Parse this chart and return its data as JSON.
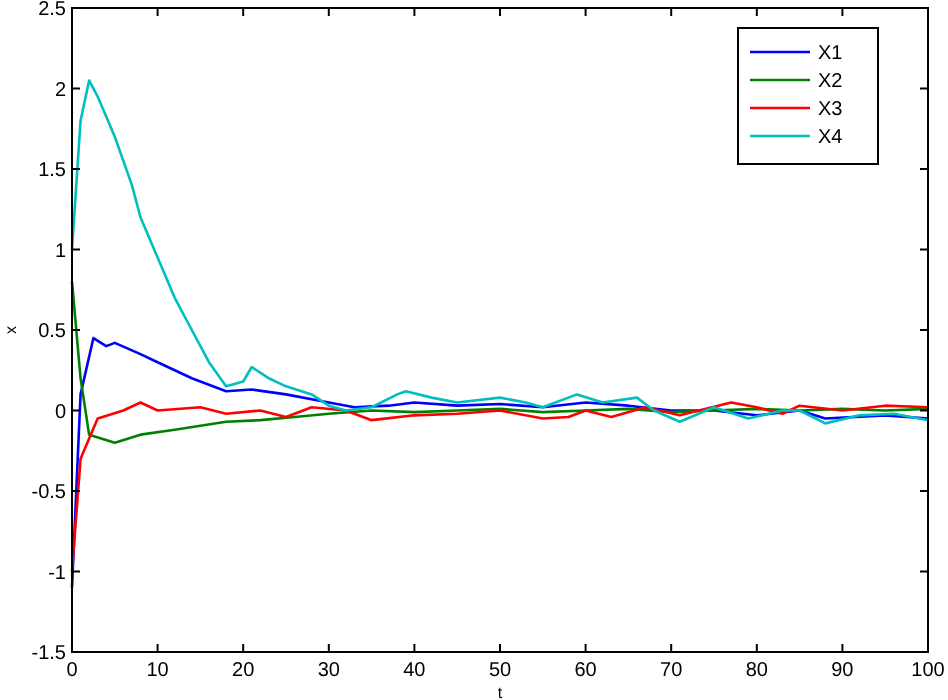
{
  "chart_data": {
    "type": "line",
    "xlabel": "t",
    "ylabel": "x",
    "xlim": [
      0,
      100
    ],
    "ylim": [
      -1.5,
      2.5
    ],
    "xticks": [
      0,
      10,
      20,
      30,
      40,
      50,
      60,
      70,
      80,
      90,
      100
    ],
    "yticks": [
      -1.5,
      -1,
      -0.5,
      0,
      0.5,
      1,
      1.5,
      2,
      2.5
    ],
    "legend": "top right",
    "grid": false,
    "series": [
      {
        "name": "X1",
        "color": "#0000ff",
        "x": [
          0,
          1,
          2.5,
          4,
          5,
          8,
          10,
          14,
          18,
          21,
          25,
          30,
          33,
          37,
          40,
          45,
          50,
          55,
          60,
          65,
          70,
          75,
          80,
          85,
          88,
          95,
          100
        ],
        "values": [
          -1.1,
          0.1,
          0.45,
          0.4,
          0.42,
          0.35,
          0.3,
          0.2,
          0.12,
          0.13,
          0.1,
          0.05,
          0.02,
          0.03,
          0.05,
          0.03,
          0.04,
          0.02,
          0.05,
          0.03,
          0,
          0,
          -0.03,
          0,
          -0.05,
          -0.03,
          -0.05
        ]
      },
      {
        "name": "X2",
        "color": "#008000",
        "x": [
          0,
          1,
          2,
          5,
          8,
          12,
          18,
          22,
          26,
          30,
          35,
          40,
          45,
          50,
          55,
          60,
          65,
          70,
          75,
          80,
          85,
          90,
          95,
          100
        ],
        "values": [
          0.8,
          0.2,
          -0.15,
          -0.2,
          -0.15,
          -0.12,
          -0.07,
          -0.06,
          -0.04,
          -0.02,
          0,
          -0.01,
          0,
          0.01,
          -0.01,
          0,
          0.01,
          -0.01,
          0,
          0.01,
          0,
          0.01,
          0,
          0.01
        ]
      },
      {
        "name": "X3",
        "color": "#ff0000",
        "x": [
          0,
          1,
          3,
          6,
          8,
          10,
          15,
          18,
          22,
          25,
          28,
          32,
          35,
          40,
          45,
          50,
          55,
          58,
          60,
          63,
          67,
          71,
          77,
          80,
          83,
          85,
          90,
          95,
          100
        ],
        "values": [
          -1,
          -0.3,
          -0.05,
          0,
          0.05,
          0,
          0.02,
          -0.02,
          0,
          -0.04,
          0.02,
          0,
          -0.06,
          -0.03,
          -0.02,
          0,
          -0.05,
          -0.04,
          0,
          -0.04,
          0.02,
          -0.03,
          0.05,
          0.02,
          -0.02,
          0.03,
          0,
          0.03,
          0.02
        ]
      },
      {
        "name": "X4",
        "color": "#00bfbf",
        "x": [
          0,
          1,
          2,
          3,
          5,
          7,
          8,
          10,
          12,
          14,
          16,
          18,
          20,
          21,
          23,
          25,
          28,
          30,
          32,
          35,
          38,
          39,
          42,
          45,
          50,
          53,
          55,
          59,
          62,
          66,
          68,
          71,
          75,
          79,
          83,
          85,
          88,
          92,
          96,
          100
        ],
        "values": [
          1,
          1.8,
          2.05,
          1.95,
          1.7,
          1.4,
          1.2,
          0.95,
          0.7,
          0.5,
          0.3,
          0.15,
          0.18,
          0.27,
          0.2,
          0.15,
          0.1,
          0.03,
          0,
          0.02,
          0.1,
          0.12,
          0.08,
          0.05,
          0.08,
          0.05,
          0.02,
          0.1,
          0.05,
          0.08,
          0,
          -0.07,
          0.02,
          -0.05,
          0,
          0,
          -0.08,
          -0.03,
          -0.02,
          -0.06
        ]
      }
    ]
  }
}
